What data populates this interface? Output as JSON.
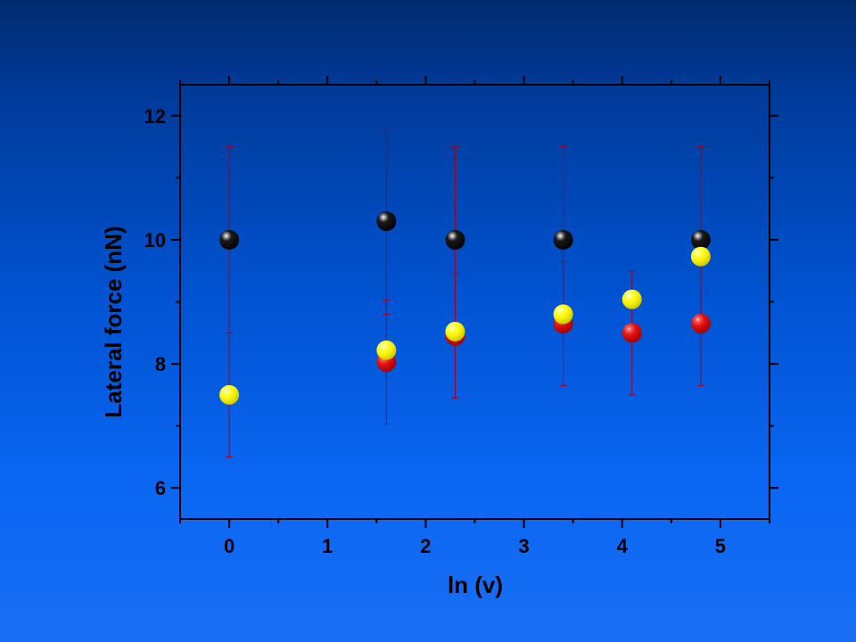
{
  "chart_data": {
    "type": "scatter",
    "title": "",
    "xlabel": "ln (v)",
    "ylabel": "Lateral force (nN)",
    "xlim": [
      -0.5,
      5.5
    ],
    "ylim": [
      5.5,
      12.5
    ],
    "x_ticks": [
      0,
      1,
      2,
      3,
      4,
      5
    ],
    "y_ticks": [
      6,
      8,
      10,
      12
    ],
    "grid": false,
    "colors": {
      "black": "#000000",
      "red": "#e01010",
      "yellow": "#f5f000",
      "errorbar": "#a00020"
    },
    "series": [
      {
        "color": "black",
        "points": [
          {
            "x": 0,
            "y": 10.0,
            "err": 1.5
          },
          {
            "x": 1.6,
            "y": 10.3,
            "err": 1.5
          },
          {
            "x": 2.3,
            "y": 10.0,
            "err": 1.5
          },
          {
            "x": 3.4,
            "y": 10.0,
            "err": 1.5
          },
          {
            "x": 4.8,
            "y": 10.0,
            "err": 1.5
          }
        ]
      },
      {
        "color": "red",
        "points": [
          {
            "x": 1.6,
            "y": 8.03,
            "err": 1.0
          },
          {
            "x": 2.3,
            "y": 8.45,
            "err": 1.0
          },
          {
            "x": 3.4,
            "y": 8.65,
            "err": 1.0
          },
          {
            "x": 4.1,
            "y": 8.5,
            "err": 1.0
          },
          {
            "x": 4.8,
            "y": 8.65,
            "err": 1.0
          }
        ]
      },
      {
        "color": "yellow",
        "points": [
          {
            "x": 0,
            "y": 7.5,
            "err": 1.0
          },
          {
            "x": 1.6,
            "y": 8.22
          },
          {
            "x": 2.3,
            "y": 8.52
          },
          {
            "x": 3.4,
            "y": 8.8
          },
          {
            "x": 4.1,
            "y": 9.04
          },
          {
            "x": 4.8,
            "y": 9.73
          }
        ]
      }
    ]
  }
}
